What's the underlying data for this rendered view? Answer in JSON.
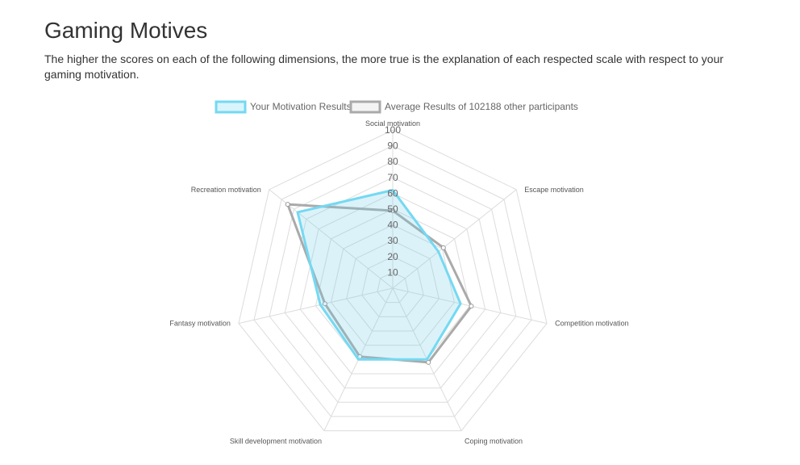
{
  "page": {
    "title": "Gaming Motives",
    "description": "The higher the scores on each of the following dimensions, the more true is the explanation of each respected scale with respect to your gaming motivation."
  },
  "chart_data": {
    "type": "radar",
    "axes": [
      "Social motivation",
      "Escape motivation",
      "Competition motivation",
      "Coping motivation",
      "Skill development motivation",
      "Fantasy motivation",
      "Recreation motivation"
    ],
    "ticks": [
      "10",
      "20",
      "30",
      "40",
      "50",
      "60",
      "70",
      "80",
      "90",
      "100"
    ],
    "r_range": [
      0,
      100
    ],
    "grid": true,
    "legend_position": "top",
    "series": [
      {
        "name": "Your Motivation Results",
        "values": [
          62,
          37,
          44,
          50,
          50,
          47,
          77
        ],
        "color": "#74d9f2",
        "fill": "rgba(116,205,232,0.25)"
      },
      {
        "name": "Average Results of 102188 other participants",
        "values": [
          49,
          41,
          51,
          52,
          48,
          44,
          85
        ],
        "color": "#aaaaaa",
        "fill": "none"
      }
    ]
  }
}
